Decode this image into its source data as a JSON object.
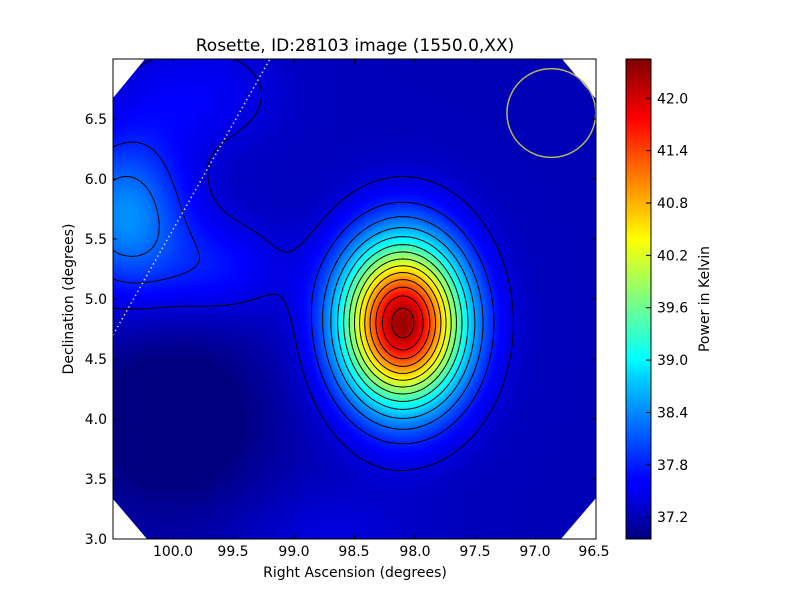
{
  "chart_data": {
    "type": "heatmap",
    "title": "Rosette, ID:28103 image (1550.0,XX)",
    "xlabel": "Right Ascension (degrees)",
    "ylabel": "Declination (degrees)",
    "colorbar_label": "Power in Kelvin",
    "xlim": [
      100.5,
      96.5
    ],
    "ylim": [
      3.0,
      7.0
    ],
    "x_ticks": [
      "100.0",
      "99.5",
      "99.0",
      "98.5",
      "98.0",
      "97.5",
      "97.0",
      "96.5"
    ],
    "y_ticks": [
      "3.0",
      "3.5",
      "4.0",
      "4.5",
      "5.0",
      "5.5",
      "6.0",
      "6.5"
    ],
    "colorbar_ticks": [
      "37.2",
      "37.8",
      "38.4",
      "39.0",
      "39.6",
      "40.2",
      "40.8",
      "41.4",
      "42.0"
    ],
    "colorbar_range": [
      36.95,
      42.45
    ],
    "colormap": "jet",
    "grid": false,
    "peak": {
      "ra": 98.1,
      "dec": 4.8,
      "value": 42.3
    },
    "secondary_bright_region": {
      "ra": 100.4,
      "dec": 5.7,
      "value": 38.4
    },
    "dark_region": {
      "ra": 100.0,
      "dec": 4.0,
      "value": 37.0
    },
    "beam_circle": {
      "ra": 96.87,
      "dec": 6.55,
      "radius_deg": 0.37,
      "color": "#b5b55a"
    },
    "dotted_line": {
      "from": [
        100.5,
        4.7
      ],
      "to": [
        99.2,
        7.0
      ],
      "color": "#cfd6df"
    },
    "contours": "black iso-power lines"
  }
}
